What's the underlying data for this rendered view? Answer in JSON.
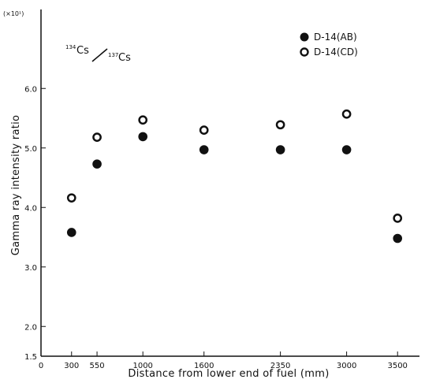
{
  "chart_data": {
    "type": "scatter",
    "title": "",
    "xlabel": "Distance from lower end of fuel (mm)",
    "ylabel": "Gamma ray intensity ratio",
    "y_scale_note": "(×10¹)",
    "ratio_label": {
      "iso1_mass": "134",
      "iso1_el": "Cs",
      "iso2_mass": "137",
      "iso2_el": "Cs"
    },
    "xlim": [
      0,
      3600
    ],
    "ylim": [
      1.5,
      6.8
    ],
    "x_ticks": [
      {
        "value": 0,
        "label": "0"
      },
      {
        "value": 300,
        "label": "300"
      },
      {
        "value": 550,
        "label": "550"
      },
      {
        "value": 1000,
        "label": "1000"
      },
      {
        "value": 1600,
        "label": "1600"
      },
      {
        "value": 2350,
        "label": "2350"
      },
      {
        "value": 3000,
        "label": "3000"
      },
      {
        "value": 3500,
        "label": "3500"
      }
    ],
    "y_ticks": [
      {
        "value": 1.5,
        "label": "1.5"
      },
      {
        "value": 2.0,
        "label": "2.0"
      },
      {
        "value": 3.0,
        "label": "3.0"
      },
      {
        "value": 4.0,
        "label": "4.0"
      },
      {
        "value": 5.0,
        "label": "5.0"
      },
      {
        "value": 6.0,
        "label": "6.0"
      }
    ],
    "legend_position": "top-right",
    "grid": false,
    "series": [
      {
        "name": "D-14(AB)",
        "marker": "filled-circle",
        "color": "#111111",
        "x": [
          300,
          550,
          1000,
          1600,
          2350,
          3000,
          3500
        ],
        "y": [
          3.58,
          4.73,
          5.19,
          4.97,
          4.97,
          4.97,
          3.48
        ]
      },
      {
        "name": "D-14(CD)",
        "marker": "open-circle",
        "color": "#111111",
        "x": [
          300,
          550,
          1000,
          1600,
          2350,
          3000,
          3500
        ],
        "y": [
          4.16,
          5.18,
          5.47,
          5.3,
          5.39,
          5.57,
          3.82
        ]
      }
    ]
  }
}
